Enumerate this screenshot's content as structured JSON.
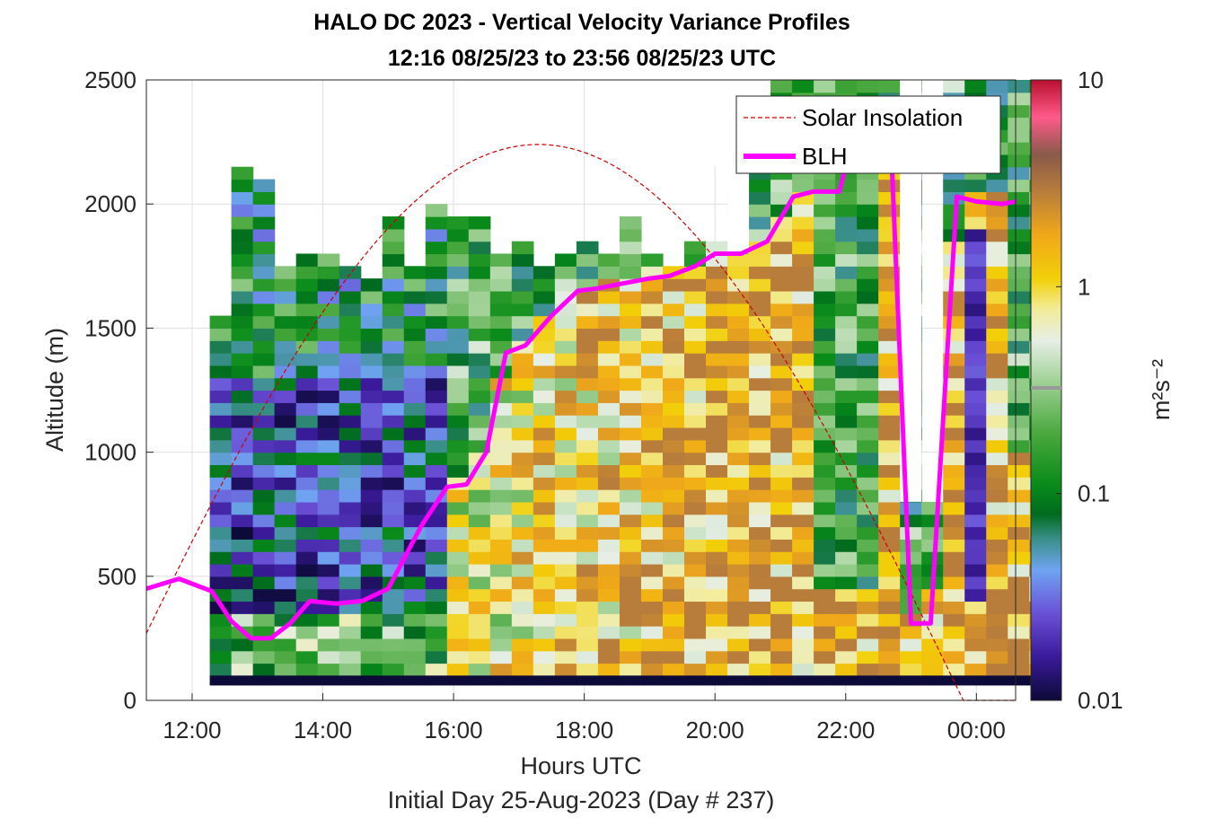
{
  "chart_data": {
    "type": "heatmap",
    "title_line1": "HALO DC 2023 - Vertical Velocity Variance Profiles",
    "title_line2": "12:16 08/25/23 to 23:56 08/25/23  UTC",
    "xlabel": "Hours UTC",
    "xlabel2": "Initial Day 25-Aug-2023 (Day # 237)",
    "ylabel": "Altitude (m)",
    "colorbar_label": "m²s⁻²",
    "colorbar_scale": "log",
    "colorbar_range": [
      0.01,
      10
    ],
    "colorbar_ticks": [
      {
        "value": 10,
        "label": "10"
      },
      {
        "value": 1,
        "label": "1"
      },
      {
        "value": 0.1,
        "label": "0.1"
      },
      {
        "value": 0.01,
        "label": "0.01"
      }
    ],
    "xlim_hours": [
      11.3,
      24.6
    ],
    "ylim": [
      0,
      2500
    ],
    "x_ticks": [
      {
        "value": 12,
        "label": "12:00"
      },
      {
        "value": 14,
        "label": "14:00"
      },
      {
        "value": 16,
        "label": "16:00"
      },
      {
        "value": 18,
        "label": "18:00"
      },
      {
        "value": 20,
        "label": "20:00"
      },
      {
        "value": 22,
        "label": "22:00"
      },
      {
        "value": 24,
        "label": "00:00"
      }
    ],
    "y_ticks": [
      0,
      500,
      1000,
      1500,
      2000,
      2500
    ],
    "grid": true,
    "legend": {
      "placement": "top-right",
      "entries": [
        {
          "label": "Solar Insolation",
          "color": "#cc0000",
          "style": "dashed"
        },
        {
          "label": "BLH",
          "color": "#ff00ff",
          "style": "solid"
        }
      ]
    },
    "heatmap": {
      "x_start_hours": 12.27,
      "bin_hours": 0.33,
      "alt_start_m": 100,
      "alt_bin_m": 50,
      "data_top_m": [
        1550,
        2150,
        2100,
        1750,
        1800,
        1800,
        1750,
        1700,
        1950,
        1750,
        2000,
        1950,
        1950,
        1800,
        1850,
        1750,
        1800,
        1850,
        1800,
        1950,
        1800,
        1750,
        1850,
        1850,
        2050,
        2200,
        2500,
        2500,
        2500,
        2500,
        2500,
        2500,
        2500,
        800,
        2500,
        2500,
        2500,
        2500,
        2500
      ],
      "gap_bins": [
        [
          23,
          2150
        ],
        [
          24,
          1800
        ],
        [
          32,
          800
        ]
      ]
    },
    "series": [
      {
        "name": "BLH",
        "color": "#ff00ff",
        "x_hours": [
          11.3,
          11.8,
          12.3,
          12.6,
          12.9,
          13.2,
          13.5,
          13.8,
          14.2,
          14.6,
          15.0,
          15.2,
          15.5,
          15.9,
          16.2,
          16.5,
          16.8,
          17.1,
          17.5,
          17.9,
          18.2,
          18.6,
          19.0,
          19.3,
          19.7,
          20.0,
          20.4,
          20.8,
          21.2,
          21.5,
          21.9,
          22.2,
          22.5,
          22.7,
          23.0,
          23.3,
          23.7,
          24.0,
          24.4,
          24.6
        ],
        "values": [
          450,
          490,
          440,
          320,
          250,
          250,
          310,
          400,
          390,
          400,
          450,
          550,
          700,
          860,
          870,
          1000,
          1400,
          1430,
          1550,
          1650,
          1660,
          1680,
          1700,
          1710,
          1750,
          1800,
          1800,
          1850,
          2030,
          2050,
          2050,
          2350,
          2400,
          2200,
          310,
          310,
          2030,
          2010,
          2000,
          2010
        ]
      },
      {
        "name": "Solar Insolation",
        "color": "#cc0000",
        "sunrise_hours": 10.8,
        "peak_hours": 17.2,
        "sunset_hours": 23.8,
        "peak_altitude_m": 2240
      }
    ]
  }
}
